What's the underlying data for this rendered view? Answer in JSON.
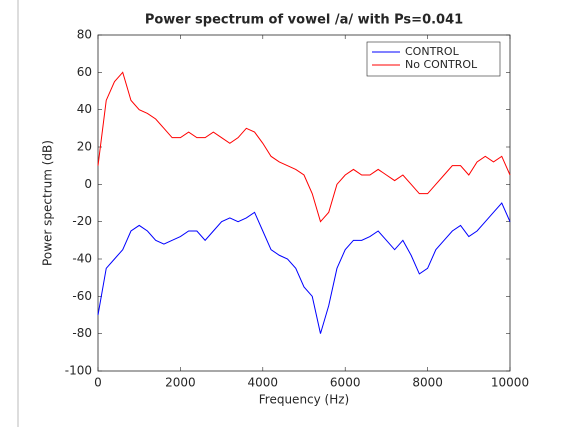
{
  "chart_data": {
    "type": "line",
    "title": "Power spectrum of vowel /a/ with Ps=0.041",
    "x_label": "Frequency (Hz)",
    "y_label": "Power spectrum (dB)",
    "x": [
      0,
      200,
      400,
      600,
      800,
      1000,
      1200,
      1400,
      1600,
      1800,
      2000,
      2200,
      2400,
      2600,
      2800,
      3000,
      3200,
      3400,
      3600,
      3800,
      4000,
      4200,
      4400,
      4600,
      4800,
      5000,
      5200,
      5400,
      5600,
      5800,
      6000,
      6200,
      6400,
      6600,
      6800,
      7000,
      7200,
      7400,
      7600,
      7800,
      8000,
      8200,
      8400,
      8600,
      8800,
      9000,
      9200,
      9400,
      9600,
      9800,
      10000
    ],
    "series": [
      {
        "name": "CONTROL",
        "color": "#0000ff",
        "values": [
          -70,
          -45,
          -40,
          -35,
          -25,
          -22,
          -25,
          -30,
          -32,
          -30,
          -28,
          -25,
          -25,
          -30,
          -25,
          -20,
          -18,
          -20,
          -18,
          -15,
          -25,
          -35,
          -38,
          -40,
          -45,
          -55,
          -60,
          -80,
          -65,
          -45,
          -35,
          -30,
          -30,
          -28,
          -25,
          -30,
          -35,
          -30,
          -38,
          -48,
          -45,
          -35,
          -30,
          -25,
          -22,
          -28,
          -25,
          -20,
          -15,
          -10,
          -20
        ]
      },
      {
        "name": "No CONTROL",
        "color": "#ff0000",
        "values": [
          10,
          45,
          55,
          60,
          45,
          40,
          38,
          35,
          30,
          25,
          25,
          28,
          25,
          25,
          28,
          25,
          22,
          25,
          30,
          28,
          22,
          15,
          12,
          10,
          8,
          5,
          -5,
          -20,
          -15,
          0,
          5,
          8,
          5,
          5,
          8,
          5,
          2,
          5,
          0,
          -5,
          -5,
          0,
          5,
          10,
          10,
          5,
          12,
          15,
          12,
          15,
          5
        ]
      }
    ],
    "xlim": [
      0,
      10000
    ],
    "xticks": [
      0,
      2000,
      4000,
      6000,
      8000,
      10000
    ],
    "ylim": [
      -100,
      80
    ],
    "yticks": [
      -100,
      -80,
      -60,
      -40,
      -20,
      0,
      20,
      40,
      60,
      80
    ],
    "legend": "northeast"
  }
}
